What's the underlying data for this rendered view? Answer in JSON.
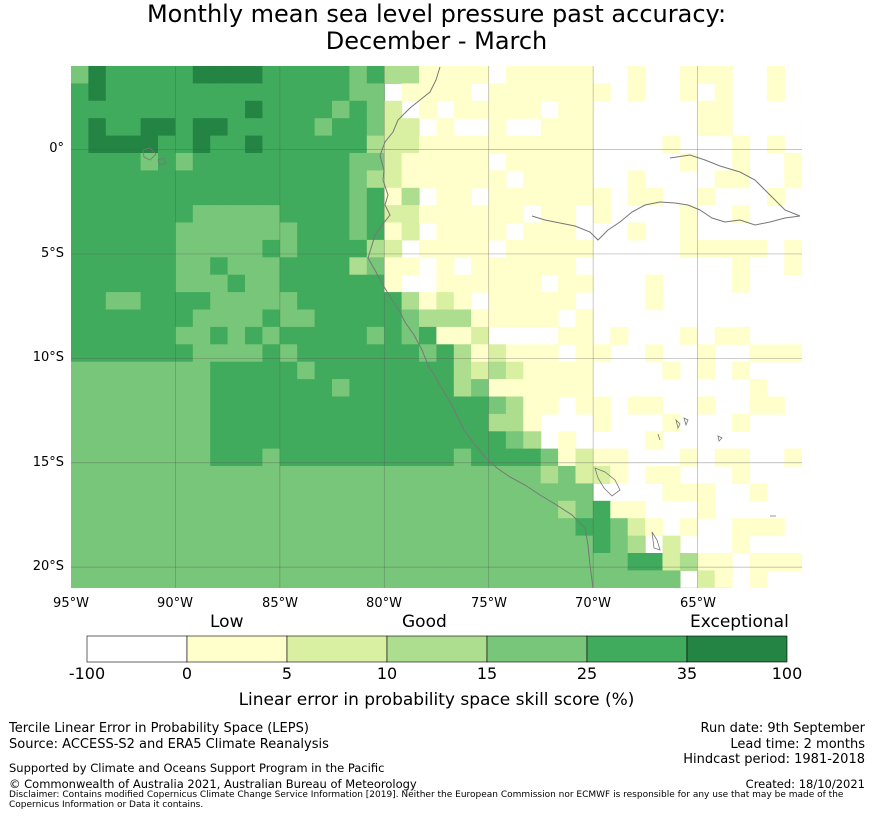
{
  "title": {
    "line1": "Monthly mean sea level pressure past accuracy:",
    "line2": "December - March"
  },
  "map": {
    "lat_ticks": [
      "0°",
      "5°S",
      "10°S",
      "15°S",
      "20°S"
    ],
    "lon_ticks": [
      "95°W",
      "90°W",
      "85°W",
      "80°W",
      "75°W",
      "70°W",
      "65°W"
    ],
    "extent": {
      "lon_min": -95,
      "lon_max": -60,
      "lat_min": -21,
      "lat_max": 4
    }
  },
  "colorbar": {
    "categories": [
      "Low",
      "Good",
      "Exceptional"
    ],
    "ticks": [
      "-100",
      "0",
      "5",
      "10",
      "15",
      "25",
      "35",
      "100"
    ],
    "colors": [
      "#ffffff",
      "#ffffcc",
      "#d9f0a3",
      "#addd8e",
      "#78c679",
      "#41ab5d",
      "#238443"
    ],
    "title": "Linear error in probability space skill score (%)"
  },
  "footer": {
    "method": "Tercile Linear Error in Probability Space (LEPS)",
    "source": "Source: ACCESS-S2 and ERA5 Climate Reanalysis",
    "run_date": "Run date: 9th September",
    "lead_time": "Lead time: 2 months",
    "hindcast": "Hindcast period: 1981-2018",
    "support": "Supported by Climate and Oceans Support Program in the Pacific",
    "copyright": "© Commonwealth of Australia 2021, Australian Bureau of Meteorology",
    "created": "Created: 18/10/2021",
    "disclaimer": "Disclaimer: Contains modified Copernicus Climate Change Service Information [2019]. Neither the European Commission nor ECMWF is responsible for any use that may be made of the Copernicus Information or Data it contains."
  }
}
